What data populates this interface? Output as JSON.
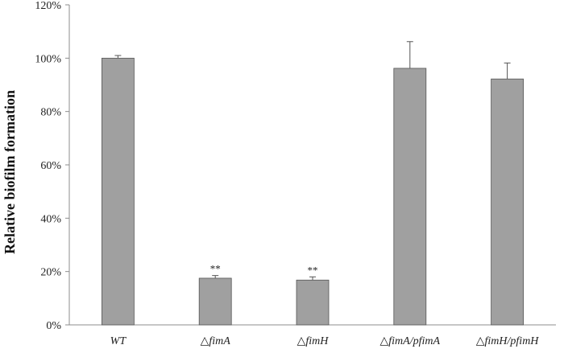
{
  "chart_data": {
    "type": "bar",
    "categories": [
      "WT",
      "△fimA",
      "△fimH",
      "△fimA/pfimA",
      "△fimH/pfimH"
    ],
    "values": [
      100,
      17.5,
      16.8,
      96.2,
      92.2
    ],
    "error": [
      1.0,
      1.0,
      1.2,
      10.0,
      6.0
    ],
    "annotations": [
      "",
      "**",
      "**",
      "",
      ""
    ],
    "ylabel": "Relative biofilm formation",
    "ylim": [
      0,
      120
    ],
    "yticks": [
      0,
      20,
      40,
      60,
      80,
      100,
      120
    ],
    "ytick_labels": [
      "0%",
      "20%",
      "40%",
      "60%",
      "80%",
      "100%",
      "120%"
    ],
    "bar_color": "#a0a0a0",
    "grid": false
  }
}
